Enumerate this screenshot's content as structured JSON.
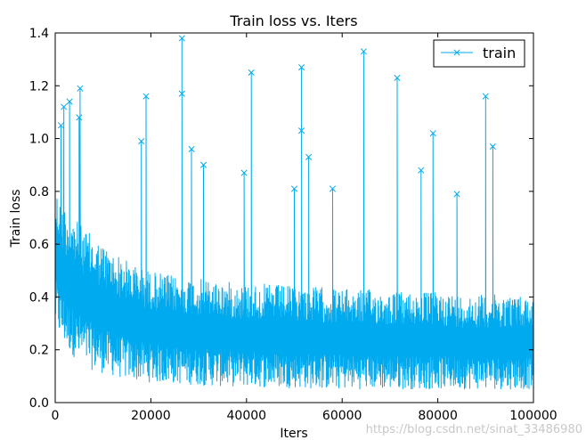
{
  "chart_data": {
    "type": "line",
    "title": "Train loss  vs. Iters",
    "xlabel": "Iters",
    "ylabel": "Train loss",
    "xlim": [
      0,
      100000
    ],
    "ylim": [
      0.0,
      1.4
    ],
    "xticks": [
      0,
      20000,
      40000,
      60000,
      80000,
      100000
    ],
    "yticks": [
      0.0,
      0.2,
      0.4,
      0.6,
      0.8,
      1.0,
      1.2,
      1.4
    ],
    "xtick_labels": [
      "0",
      "20000",
      "40000",
      "60000",
      "80000",
      "100000"
    ],
    "ytick_labels": [
      "0.0",
      "0.2",
      "0.4",
      "0.6",
      "0.8",
      "1.0",
      "1.2",
      "1.4"
    ],
    "grid": false,
    "legend_position": "top-right",
    "series": [
      {
        "name": "train",
        "color": "#00aaee",
        "marker": "x",
        "x": [
          0,
          1000,
          2000,
          3000,
          4000,
          5000,
          6000,
          8000,
          10000,
          12000,
          14000,
          16000,
          18000,
          20000,
          25000,
          30000,
          35000,
          40000,
          45000,
          50000,
          55000,
          60000,
          65000,
          70000,
          75000,
          80000,
          85000,
          90000,
          95000,
          100000
        ],
        "upper": [
          0.82,
          0.78,
          0.75,
          0.72,
          0.7,
          0.68,
          0.66,
          0.63,
          0.6,
          0.57,
          0.55,
          0.53,
          0.51,
          0.5,
          0.48,
          0.47,
          0.46,
          0.45,
          0.45,
          0.44,
          0.44,
          0.43,
          0.43,
          0.42,
          0.42,
          0.42,
          0.41,
          0.41,
          0.41,
          0.4
        ],
        "lower": [
          0.28,
          0.24,
          0.21,
          0.19,
          0.17,
          0.15,
          0.14,
          0.12,
          0.11,
          0.1,
          0.09,
          0.085,
          0.08,
          0.075,
          0.07,
          0.065,
          0.06,
          0.06,
          0.055,
          0.055,
          0.05,
          0.05,
          0.05,
          0.05,
          0.05,
          0.05,
          0.05,
          0.05,
          0.05,
          0.05
        ],
        "spikes": [
          {
            "x": 1200,
            "y": 1.05
          },
          {
            "x": 1800,
            "y": 1.12
          },
          {
            "x": 3000,
            "y": 1.14
          },
          {
            "x": 5200,
            "y": 1.19
          },
          {
            "x": 5000,
            "y": 1.08
          },
          {
            "x": 19000,
            "y": 1.16
          },
          {
            "x": 18000,
            "y": 0.99
          },
          {
            "x": 26500,
            "y": 1.38
          },
          {
            "x": 26500,
            "y": 1.17
          },
          {
            "x": 28500,
            "y": 0.96
          },
          {
            "x": 31000,
            "y": 0.9
          },
          {
            "x": 39500,
            "y": 0.87
          },
          {
            "x": 41000,
            "y": 1.25
          },
          {
            "x": 51500,
            "y": 1.27
          },
          {
            "x": 51500,
            "y": 1.03
          },
          {
            "x": 53000,
            "y": 0.93
          },
          {
            "x": 64500,
            "y": 1.33
          },
          {
            "x": 71500,
            "y": 1.23
          },
          {
            "x": 76500,
            "y": 0.88
          },
          {
            "x": 79000,
            "y": 1.02
          },
          {
            "x": 90000,
            "y": 1.16
          },
          {
            "x": 91500,
            "y": 0.97
          },
          {
            "x": 50000,
            "y": 0.81
          },
          {
            "x": 58000,
            "y": 0.81
          },
          {
            "x": 84000,
            "y": 0.79
          }
        ]
      }
    ]
  },
  "watermark": "https://blog.csdn.net/sinat_33486980"
}
